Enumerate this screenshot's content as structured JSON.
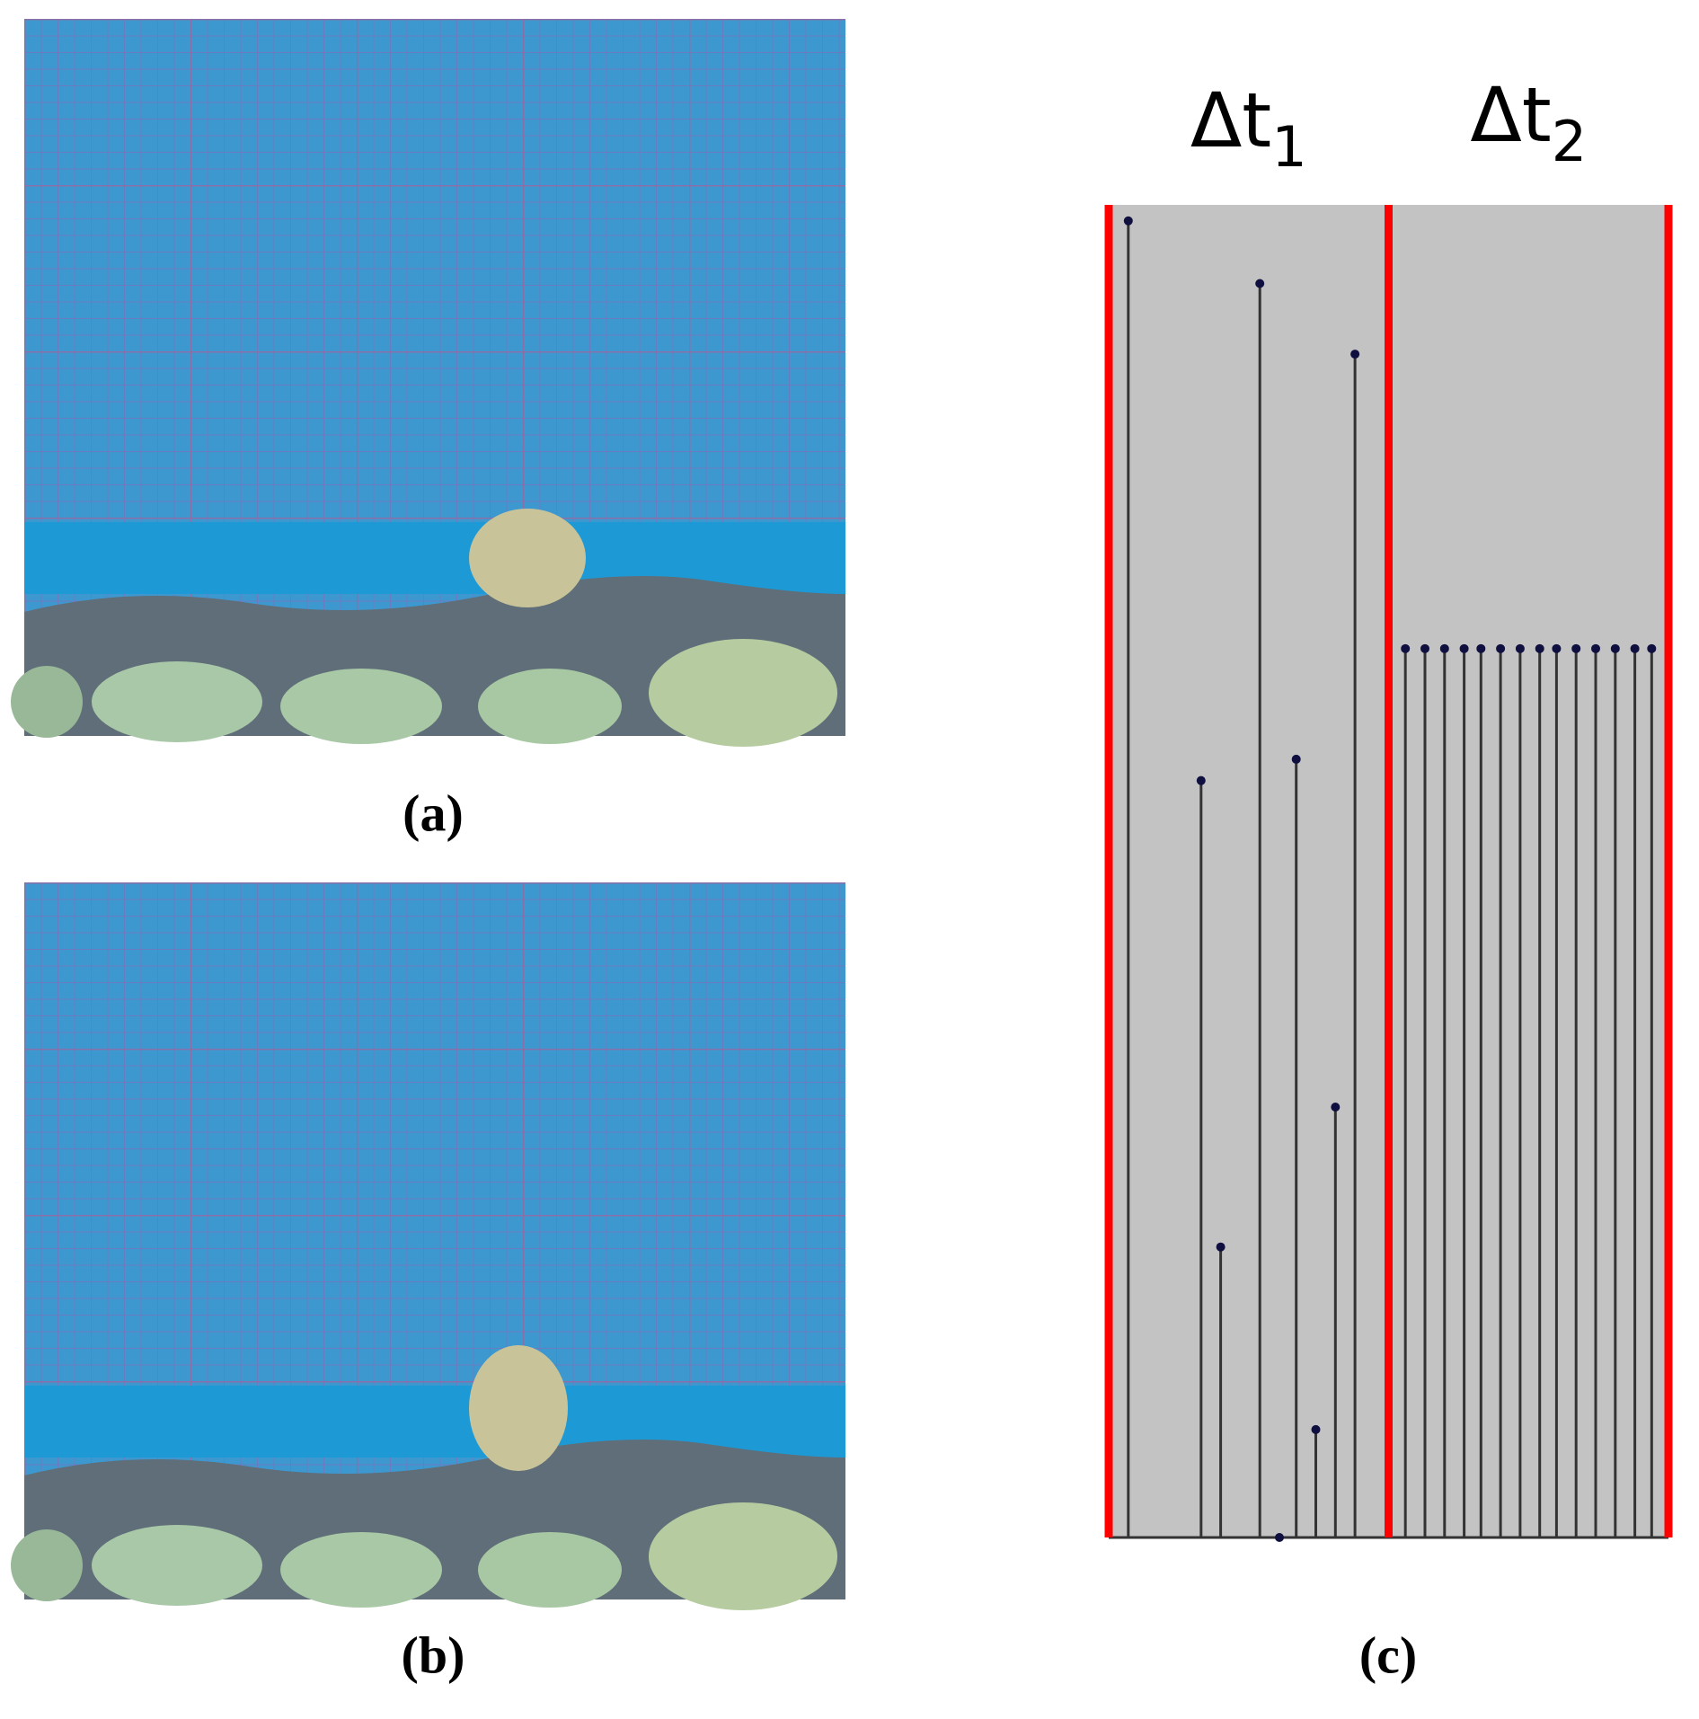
{
  "figure": {
    "panels": [
      {
        "label": "(a)"
      },
      {
        "label": "(b)"
      },
      {
        "label": "(c)"
      }
    ],
    "chart_data": {
      "type": "stem",
      "xlim": [
        0,
        2
      ],
      "ylim": [
        0,
        100
      ],
      "boundaries": [
        0,
        1,
        2
      ],
      "boundary_color": "#ff0000",
      "background": "#c3c3c3",
      "stem_color": "#333333",
      "marker_color": "#101040",
      "interval_labels": [
        {
          "text": "Δt",
          "sub": "1"
        },
        {
          "text": "Δt",
          "sub": "2"
        }
      ],
      "x": [
        0.07,
        0.33,
        0.4,
        0.54,
        0.61,
        0.67,
        0.74,
        0.81,
        0.88,
        1.06,
        1.13,
        1.2,
        1.27,
        1.33,
        1.4,
        1.47,
        1.54,
        1.6,
        1.67,
        1.74,
        1.81,
        1.88,
        1.94
      ],
      "values": [
        98.8,
        56.8,
        21.8,
        94.1,
        0,
        58.4,
        8.1,
        32.3,
        88.8,
        66.7,
        66.7,
        66.7,
        66.7,
        66.7,
        66.7,
        66.7,
        66.7,
        66.7,
        66.7,
        66.7,
        66.7,
        66.7,
        66.7
      ]
    }
  }
}
